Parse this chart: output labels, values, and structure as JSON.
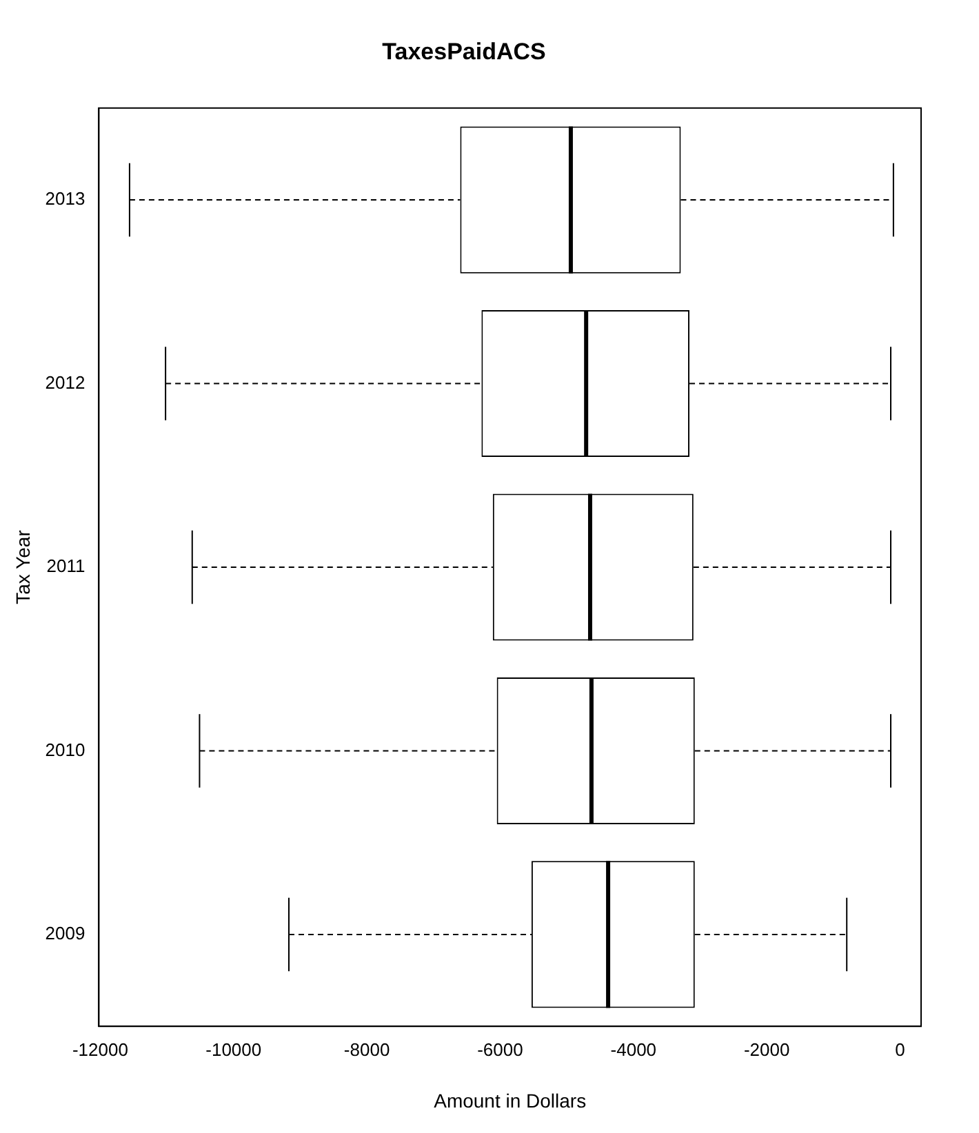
{
  "chart_data": {
    "type": "box",
    "title": "TaxesPaidACS",
    "xlabel": "Amount in Dollars",
    "ylabel": "Tax Year",
    "orientation": "horizontal",
    "categories": [
      "2013",
      "2012",
      "2011",
      "2010",
      "2009"
    ],
    "boxes": [
      {
        "low": -11560,
        "q1": -6600,
        "median": -4940,
        "q3": -3290,
        "high": -100
      },
      {
        "low": -11020,
        "q1": -6280,
        "median": -4710,
        "q3": -3160,
        "high": -140
      },
      {
        "low": -10620,
        "q1": -6110,
        "median": -4650,
        "q3": -3100,
        "high": -140
      },
      {
        "low": -10510,
        "q1": -6050,
        "median": -4630,
        "q3": -3080,
        "high": -140
      },
      {
        "low": -9170,
        "q1": -5530,
        "median": -4380,
        "q3": -3080,
        "high": -800
      }
    ],
    "xlim": [
      -12020,
      315
    ],
    "xticks": [
      -12000,
      -10000,
      -8000,
      -6000,
      -4000,
      -2000,
      0
    ]
  }
}
